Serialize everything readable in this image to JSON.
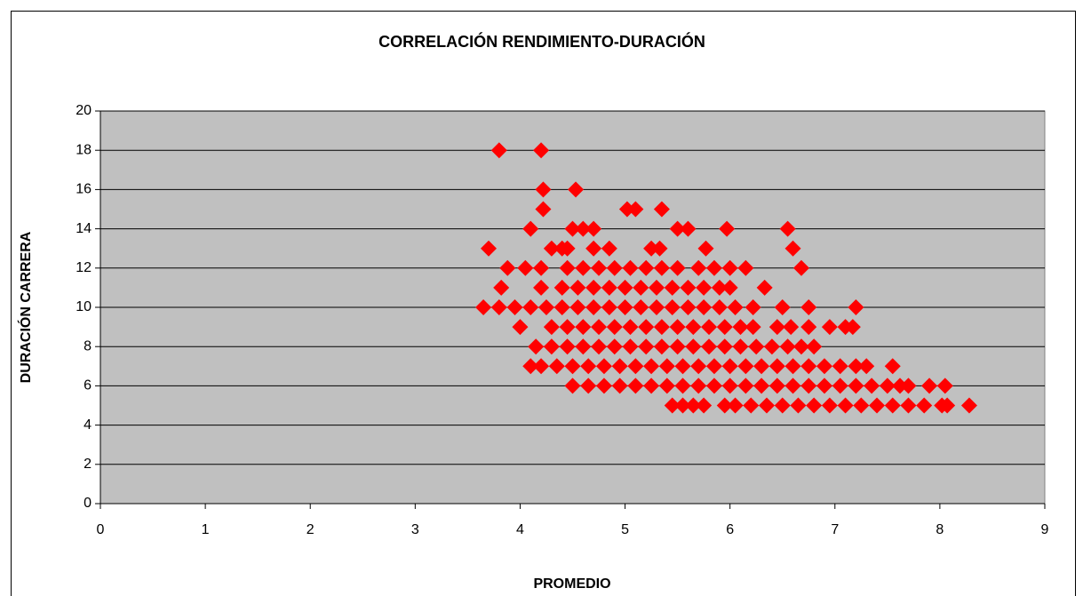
{
  "chart_data": {
    "type": "scatter",
    "title": "CORRELACIÓN RENDIMIENTO-DURACIÓN",
    "x_label": "PROMEDIO",
    "y_label": "DURACIÓN CARRERA",
    "color": "#ff0000",
    "plot_background": "#c0c0c0",
    "grid": true,
    "xlim": [
      0,
      9
    ],
    "xticks": [
      0,
      1,
      2,
      3,
      4,
      5,
      6,
      7,
      8,
      9
    ],
    "ylim": [
      0,
      20
    ],
    "yticks": [
      0,
      2,
      4,
      6,
      8,
      10,
      12,
      14,
      16,
      18,
      20
    ],
    "x": [
      3.8,
      4.2,
      4.22,
      4.53,
      4.22,
      5.02,
      5.1,
      5.35,
      4.1,
      4.5,
      4.6,
      4.7,
      5.5,
      5.6,
      5.97,
      6.55,
      3.7,
      4.3,
      4.4,
      4.45,
      4.7,
      4.85,
      5.25,
      5.33,
      5.77,
      6.6,
      3.88,
      4.05,
      4.2,
      4.45,
      4.6,
      4.75,
      4.9,
      5.05,
      5.2,
      5.35,
      5.5,
      5.7,
      5.85,
      6.0,
      6.15,
      6.68,
      3.82,
      4.2,
      4.4,
      4.55,
      4.7,
      4.85,
      5.0,
      5.15,
      5.3,
      5.45,
      5.6,
      5.75,
      5.9,
      6.0,
      6.33,
      3.65,
      3.8,
      3.95,
      4.1,
      4.25,
      4.4,
      4.55,
      4.7,
      4.85,
      5.0,
      5.15,
      5.3,
      5.45,
      5.6,
      5.75,
      5.9,
      6.05,
      6.22,
      6.5,
      6.75,
      7.2,
      4.0,
      4.3,
      4.45,
      4.6,
      4.75,
      4.9,
      5.05,
      5.2,
      5.35,
      5.5,
      5.65,
      5.8,
      5.95,
      6.1,
      6.22,
      6.45,
      6.58,
      6.75,
      6.95,
      7.1,
      7.17,
      4.15,
      4.3,
      4.45,
      4.6,
      4.75,
      4.9,
      5.05,
      5.2,
      5.35,
      5.5,
      5.65,
      5.8,
      5.95,
      6.1,
      6.25,
      6.4,
      6.55,
      6.68,
      6.8,
      4.1,
      4.2,
      4.35,
      4.5,
      4.65,
      4.8,
      4.95,
      5.1,
      5.25,
      5.4,
      5.55,
      5.7,
      5.85,
      6.0,
      6.15,
      6.3,
      6.45,
      6.6,
      6.75,
      6.9,
      7.05,
      7.2,
      7.3,
      7.55,
      4.5,
      4.65,
      4.8,
      4.95,
      5.1,
      5.25,
      5.4,
      5.55,
      5.7,
      5.85,
      6.0,
      6.15,
      6.3,
      6.45,
      6.6,
      6.75,
      6.9,
      7.05,
      7.2,
      7.35,
      7.5,
      7.62,
      7.7,
      7.9,
      8.05,
      5.45,
      5.55,
      5.65,
      5.75,
      5.95,
      6.05,
      6.2,
      6.35,
      6.5,
      6.65,
      6.8,
      6.95,
      7.1,
      7.25,
      7.4,
      7.55,
      7.7,
      7.85,
      8.02,
      8.07,
      8.28
    ],
    "values": [
      18,
      18,
      16,
      16,
      15,
      15,
      15,
      15,
      14,
      14,
      14,
      14,
      14,
      14,
      14,
      14,
      13,
      13,
      13,
      13,
      13,
      13,
      13,
      13,
      13,
      13,
      12,
      12,
      12,
      12,
      12,
      12,
      12,
      12,
      12,
      12,
      12,
      12,
      12,
      12,
      12,
      12,
      11,
      11,
      11,
      11,
      11,
      11,
      11,
      11,
      11,
      11,
      11,
      11,
      11,
      11,
      11,
      10,
      10,
      10,
      10,
      10,
      10,
      10,
      10,
      10,
      10,
      10,
      10,
      10,
      10,
      10,
      10,
      10,
      10,
      10,
      10,
      10,
      9,
      9,
      9,
      9,
      9,
      9,
      9,
      9,
      9,
      9,
      9,
      9,
      9,
      9,
      9,
      9,
      9,
      9,
      9,
      9,
      9,
      8,
      8,
      8,
      8,
      8,
      8,
      8,
      8,
      8,
      8,
      8,
      8,
      8,
      8,
      8,
      8,
      8,
      8,
      8,
      7,
      7,
      7,
      7,
      7,
      7,
      7,
      7,
      7,
      7,
      7,
      7,
      7,
      7,
      7,
      7,
      7,
      7,
      7,
      7,
      7,
      7,
      7,
      7,
      6,
      6,
      6,
      6,
      6,
      6,
      6,
      6,
      6,
      6,
      6,
      6,
      6,
      6,
      6,
      6,
      6,
      6,
      6,
      6,
      6,
      6,
      6,
      6,
      6,
      5,
      5,
      5,
      5,
      5,
      5,
      5,
      5,
      5,
      5,
      5,
      5,
      5,
      5,
      5,
      5,
      5,
      5,
      5,
      5,
      5
    ]
  }
}
